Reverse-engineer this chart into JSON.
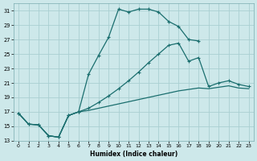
{
  "xlabel": "Humidex (Indice chaleur)",
  "bg_color": "#cde8ea",
  "grid_color": "#aacfd2",
  "line_color": "#1a6e6e",
  "xlim": [
    -0.5,
    23.5
  ],
  "ylim": [
    13,
    32
  ],
  "xticks": [
    0,
    1,
    2,
    3,
    4,
    5,
    6,
    7,
    8,
    9,
    10,
    11,
    12,
    13,
    14,
    15,
    16,
    17,
    18,
    19,
    20,
    21,
    22,
    23
  ],
  "yticks": [
    13,
    15,
    17,
    19,
    21,
    23,
    25,
    27,
    29,
    31
  ],
  "line1_x": [
    0,
    1,
    2,
    3,
    4,
    5,
    6,
    7,
    8,
    9,
    10,
    11,
    12,
    13,
    14,
    15,
    16,
    17,
    18
  ],
  "line1_y": [
    16.8,
    15.3,
    15.2,
    13.7,
    13.5,
    16.5,
    17.0,
    22.2,
    24.8,
    27.3,
    31.2,
    30.8,
    31.2,
    31.2,
    30.8,
    29.5,
    28.8,
    27.0,
    26.8
  ],
  "line2_x": [
    0,
    1,
    2,
    3,
    4,
    5,
    6,
    7,
    8,
    9,
    10,
    11,
    12,
    13,
    14,
    15,
    16,
    17,
    18,
    19,
    20,
    21,
    22,
    23
  ],
  "line2_y": [
    16.8,
    15.3,
    15.2,
    13.7,
    13.5,
    16.5,
    17.0,
    17.5,
    18.3,
    19.2,
    20.2,
    21.3,
    22.5,
    23.8,
    25.0,
    26.2,
    26.5,
    24.0,
    24.5,
    20.5,
    21.0,
    21.3,
    20.8,
    20.5
  ],
  "line3_x": [
    0,
    1,
    2,
    3,
    4,
    5,
    6,
    7,
    8,
    9,
    10,
    11,
    12,
    13,
    14,
    15,
    16,
    17,
    18,
    19,
    20,
    21,
    22,
    23
  ],
  "line3_y": [
    16.8,
    15.3,
    15.2,
    13.7,
    13.5,
    16.5,
    17.0,
    17.2,
    17.5,
    17.8,
    18.1,
    18.4,
    18.7,
    19.0,
    19.3,
    19.6,
    19.9,
    20.1,
    20.3,
    20.2,
    20.4,
    20.6,
    20.3,
    20.2
  ]
}
